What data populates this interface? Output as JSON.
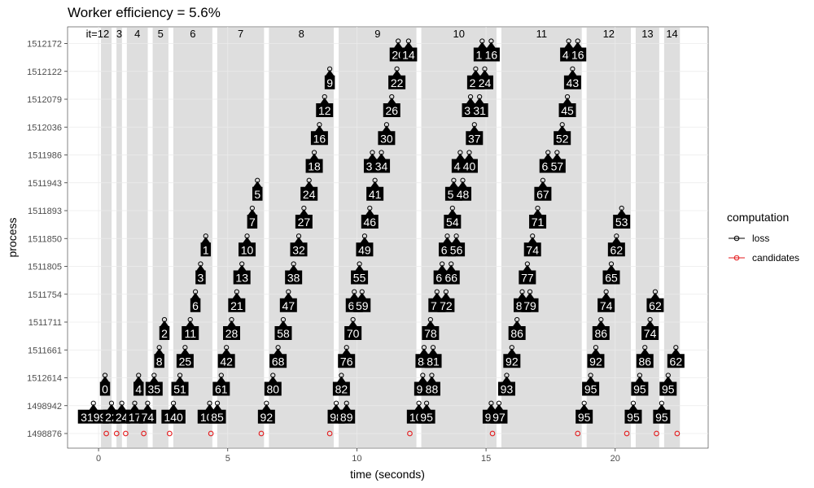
{
  "chart_data": {
    "type": "scatter",
    "title": "Worker efficiency = 5.6%",
    "xlabel": "time (seconds)",
    "ylabel": "process",
    "xlim": [
      -1.2,
      23.6
    ],
    "xticks": [
      0,
      5,
      10,
      15,
      20
    ],
    "grid": true,
    "processes": [
      "1498876",
      "1498942",
      "1512614",
      "1511661",
      "1511711",
      "1511754",
      "1511805",
      "1511850",
      "1511893",
      "1511943",
      "1511986",
      "1512036",
      "1512079",
      "1512122",
      "1512172"
    ],
    "iterations": [
      {
        "label": "it=1",
        "start": -0.3,
        "end": 0.0
      },
      {
        "label": "2",
        "start": 0.0,
        "end": 0.6
      },
      {
        "label": "3",
        "start": 0.6,
        "end": 1.0
      },
      {
        "label": "4",
        "start": 1.0,
        "end": 2.0
      },
      {
        "label": "5",
        "start": 2.0,
        "end": 2.8
      },
      {
        "label": "6",
        "start": 2.8,
        "end": 4.5
      },
      {
        "label": "7",
        "start": 4.5,
        "end": 6.5
      },
      {
        "label": "8",
        "start": 6.5,
        "end": 9.2
      },
      {
        "label": "9",
        "start": 9.2,
        "end": 12.4
      },
      {
        "label": "10",
        "start": 12.4,
        "end": 15.5
      },
      {
        "label": "11",
        "start": 15.5,
        "end": 18.8
      },
      {
        "label": "12",
        "start": 18.8,
        "end": 20.7
      },
      {
        "label": "13",
        "start": 20.7,
        "end": 21.8
      },
      {
        "label": "14",
        "start": 21.8,
        "end": 22.6
      }
    ],
    "series": [
      {
        "name": "loss",
        "color": "#000000",
        "points": [
          {
            "process": "1498942",
            "x": -0.2,
            "label": "3199"
          },
          {
            "process": "1498942",
            "x": 0.5,
            "label": "22"
          },
          {
            "process": "1498942",
            "x": 0.9,
            "label": "24"
          },
          {
            "process": "1498942",
            "x": 1.4,
            "label": "17"
          },
          {
            "process": "1498942",
            "x": 1.9,
            "label": "74"
          },
          {
            "process": "1498942",
            "x": 2.9,
            "label": "140"
          },
          {
            "process": "1498942",
            "x": 4.3,
            "label": "101"
          },
          {
            "process": "1498942",
            "x": 4.6,
            "label": "85"
          },
          {
            "process": "1498942",
            "x": 6.5,
            "label": "92"
          },
          {
            "process": "1498942",
            "x": 9.2,
            "label": "98"
          },
          {
            "process": "1498942",
            "x": 9.6,
            "label": "89"
          },
          {
            "process": "1498942",
            "x": 12.4,
            "label": "100"
          },
          {
            "process": "1498942",
            "x": 12.7,
            "label": "95"
          },
          {
            "process": "1498942",
            "x": 15.2,
            "label": "99"
          },
          {
            "process": "1498942",
            "x": 15.5,
            "label": "97"
          },
          {
            "process": "1498942",
            "x": 18.8,
            "label": "95"
          },
          {
            "process": "1498942",
            "x": 20.7,
            "label": "95"
          },
          {
            "process": "1498942",
            "x": 21.8,
            "label": "95"
          },
          {
            "process": "1512614",
            "x": 0.25,
            "label": "0"
          },
          {
            "process": "1512614",
            "x": 1.55,
            "label": "4"
          },
          {
            "process": "1512614",
            "x": 2.15,
            "label": "35"
          },
          {
            "process": "1512614",
            "x": 3.15,
            "label": "51"
          },
          {
            "process": "1512614",
            "x": 4.75,
            "label": "61"
          },
          {
            "process": "1512614",
            "x": 6.75,
            "label": "80"
          },
          {
            "process": "1512614",
            "x": 9.4,
            "label": "82"
          },
          {
            "process": "1512614",
            "x": 12.55,
            "label": "90"
          },
          {
            "process": "1512614",
            "x": 12.9,
            "label": "88"
          },
          {
            "process": "1512614",
            "x": 15.8,
            "label": "93"
          },
          {
            "process": "1512614",
            "x": 19.05,
            "label": "95"
          },
          {
            "process": "1512614",
            "x": 20.95,
            "label": "95"
          },
          {
            "process": "1512614",
            "x": 22.05,
            "label": "95"
          },
          {
            "process": "1511661",
            "x": 2.35,
            "label": "8"
          },
          {
            "process": "1511661",
            "x": 3.35,
            "label": "25"
          },
          {
            "process": "1511661",
            "x": 4.95,
            "label": "42"
          },
          {
            "process": "1511661",
            "x": 6.95,
            "label": "68"
          },
          {
            "process": "1511661",
            "x": 9.6,
            "label": "76"
          },
          {
            "process": "1511661",
            "x": 12.6,
            "label": "84"
          },
          {
            "process": "1511661",
            "x": 12.95,
            "label": "81"
          },
          {
            "process": "1511661",
            "x": 16.0,
            "label": "92"
          },
          {
            "process": "1511661",
            "x": 19.25,
            "label": "92"
          },
          {
            "process": "1511661",
            "x": 21.15,
            "label": "86"
          },
          {
            "process": "1511661",
            "x": 22.35,
            "label": "62"
          },
          {
            "process": "1511711",
            "x": 2.55,
            "label": "2"
          },
          {
            "process": "1511711",
            "x": 3.55,
            "label": "11"
          },
          {
            "process": "1511711",
            "x": 5.15,
            "label": "28"
          },
          {
            "process": "1511711",
            "x": 7.15,
            "label": "58"
          },
          {
            "process": "1511711",
            "x": 9.85,
            "label": "70"
          },
          {
            "process": "1511711",
            "x": 12.85,
            "label": "78"
          },
          {
            "process": "1511711",
            "x": 16.2,
            "label": "86"
          },
          {
            "process": "1511711",
            "x": 19.45,
            "label": "86"
          },
          {
            "process": "1511711",
            "x": 21.35,
            "label": "74"
          },
          {
            "process": "1511754",
            "x": 3.75,
            "label": "6"
          },
          {
            "process": "1511754",
            "x": 5.35,
            "label": "21"
          },
          {
            "process": "1511754",
            "x": 7.35,
            "label": "47"
          },
          {
            "process": "1511754",
            "x": 9.9,
            "label": "62"
          },
          {
            "process": "1511754",
            "x": 10.2,
            "label": "59"
          },
          {
            "process": "1511754",
            "x": 13.1,
            "label": "75"
          },
          {
            "process": "1511754",
            "x": 13.45,
            "label": "72"
          },
          {
            "process": "1511754",
            "x": 16.4,
            "label": "84"
          },
          {
            "process": "1511754",
            "x": 16.7,
            "label": "79"
          },
          {
            "process": "1511754",
            "x": 19.65,
            "label": "74"
          },
          {
            "process": "1511754",
            "x": 21.55,
            "label": "62"
          },
          {
            "process": "1511805",
            "x": 3.95,
            "label": "3"
          },
          {
            "process": "1511805",
            "x": 5.55,
            "label": "13"
          },
          {
            "process": "1511805",
            "x": 7.55,
            "label": "38"
          },
          {
            "process": "1511805",
            "x": 10.1,
            "label": "55"
          },
          {
            "process": "1511805",
            "x": 13.3,
            "label": "69"
          },
          {
            "process": "1511805",
            "x": 13.65,
            "label": "66"
          },
          {
            "process": "1511805",
            "x": 16.6,
            "label": "77"
          },
          {
            "process": "1511805",
            "x": 19.85,
            "label": "65"
          },
          {
            "process": "1511850",
            "x": 4.15,
            "label": "1"
          },
          {
            "process": "1511850",
            "x": 5.75,
            "label": "10"
          },
          {
            "process": "1511850",
            "x": 7.75,
            "label": "32"
          },
          {
            "process": "1511850",
            "x": 10.3,
            "label": "49"
          },
          {
            "process": "1511850",
            "x": 13.5,
            "label": "60"
          },
          {
            "process": "1511850",
            "x": 13.85,
            "label": "56"
          },
          {
            "process": "1511850",
            "x": 16.8,
            "label": "74"
          },
          {
            "process": "1511850",
            "x": 20.05,
            "label": "62"
          },
          {
            "process": "1511893",
            "x": 5.95,
            "label": "7"
          },
          {
            "process": "1511893",
            "x": 7.95,
            "label": "27"
          },
          {
            "process": "1511893",
            "x": 10.5,
            "label": "46"
          },
          {
            "process": "1511893",
            "x": 13.7,
            "label": "54"
          },
          {
            "process": "1511893",
            "x": 17.0,
            "label": "71"
          },
          {
            "process": "1511893",
            "x": 20.25,
            "label": "53"
          },
          {
            "process": "1511943",
            "x": 6.15,
            "label": "5"
          },
          {
            "process": "1511943",
            "x": 8.15,
            "label": "24"
          },
          {
            "process": "1511943",
            "x": 10.7,
            "label": "41"
          },
          {
            "process": "1511943",
            "x": 13.75,
            "label": "50"
          },
          {
            "process": "1511943",
            "x": 14.1,
            "label": "48"
          },
          {
            "process": "1511943",
            "x": 17.2,
            "label": "67"
          },
          {
            "process": "1511986",
            "x": 8.35,
            "label": "18"
          },
          {
            "process": "1511986",
            "x": 10.6,
            "label": "36"
          },
          {
            "process": "1511986",
            "x": 10.95,
            "label": "34"
          },
          {
            "process": "1511986",
            "x": 14.0,
            "label": "44"
          },
          {
            "process": "1511986",
            "x": 14.35,
            "label": "40"
          },
          {
            "process": "1511986",
            "x": 17.4,
            "label": "64"
          },
          {
            "process": "1511986",
            "x": 17.75,
            "label": "57"
          },
          {
            "process": "1512036",
            "x": 8.55,
            "label": "16"
          },
          {
            "process": "1512036",
            "x": 11.15,
            "label": "30"
          },
          {
            "process": "1512036",
            "x": 14.55,
            "label": "37"
          },
          {
            "process": "1512036",
            "x": 17.95,
            "label": "52"
          },
          {
            "process": "1512079",
            "x": 8.75,
            "label": "12"
          },
          {
            "process": "1512079",
            "x": 11.35,
            "label": "26"
          },
          {
            "process": "1512079",
            "x": 14.4,
            "label": "33"
          },
          {
            "process": "1512079",
            "x": 14.75,
            "label": "31"
          },
          {
            "process": "1512079",
            "x": 18.15,
            "label": "45"
          },
          {
            "process": "1512122",
            "x": 8.95,
            "label": "9"
          },
          {
            "process": "1512122",
            "x": 11.55,
            "label": "22"
          },
          {
            "process": "1512122",
            "x": 14.6,
            "label": "29"
          },
          {
            "process": "1512122",
            "x": 14.95,
            "label": "24"
          },
          {
            "process": "1512122",
            "x": 18.35,
            "label": "43"
          },
          {
            "process": "1512172",
            "x": 11.6,
            "label": "20"
          },
          {
            "process": "1512172",
            "x": 12.0,
            "label": "14"
          },
          {
            "process": "1512172",
            "x": 14.85,
            "label": "19"
          },
          {
            "process": "1512172",
            "x": 15.2,
            "label": "16"
          },
          {
            "process": "1512172",
            "x": 18.2,
            "label": "40"
          },
          {
            "process": "1512172",
            "x": 18.55,
            "label": "16"
          }
        ]
      },
      {
        "name": "candidates",
        "color": "#e41a1c",
        "points": [
          {
            "process": "1498876",
            "x": 0.3
          },
          {
            "process": "1498876",
            "x": 0.7
          },
          {
            "process": "1498876",
            "x": 1.05
          },
          {
            "process": "1498876",
            "x": 1.75
          },
          {
            "process": "1498876",
            "x": 2.75
          },
          {
            "process": "1498876",
            "x": 4.35
          },
          {
            "process": "1498876",
            "x": 6.3
          },
          {
            "process": "1498876",
            "x": 8.95
          },
          {
            "process": "1498876",
            "x": 12.05
          },
          {
            "process": "1498876",
            "x": 15.25
          },
          {
            "process": "1498876",
            "x": 18.55
          },
          {
            "process": "1498876",
            "x": 20.45
          },
          {
            "process": "1498876",
            "x": 21.6
          },
          {
            "process": "1498876",
            "x": 22.4
          }
        ]
      }
    ],
    "legend": {
      "title": "computation",
      "placement": "right",
      "items": [
        {
          "name": "loss",
          "color": "#000000"
        },
        {
          "name": "candidates",
          "color": "#e41a1c"
        }
      ]
    }
  }
}
